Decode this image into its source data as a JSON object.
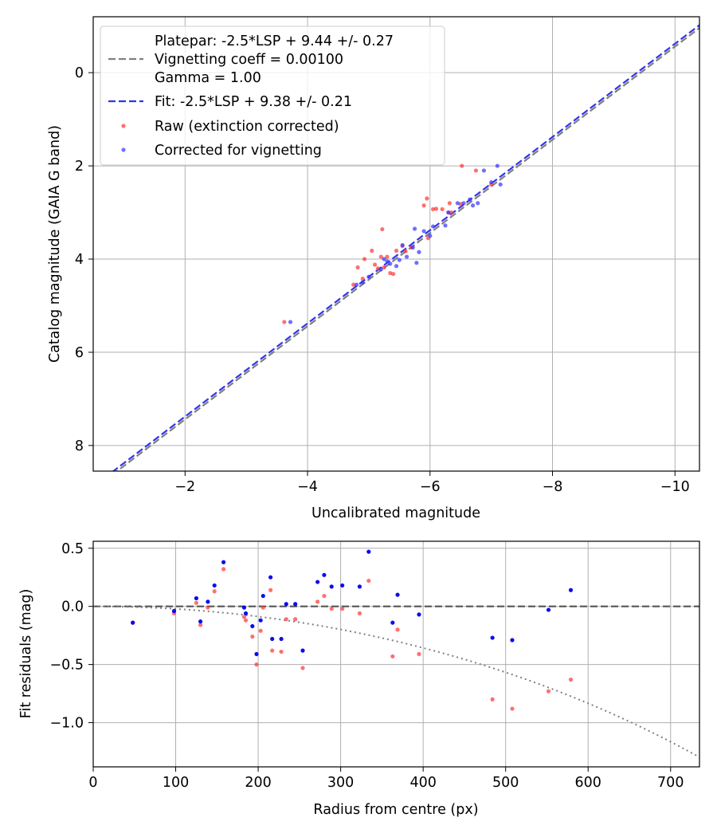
{
  "chart_data": [
    {
      "type": "scatter",
      "xlabel": "Uncalibrated magnitude",
      "ylabel": "Catalog magnitude (GAIA G band)",
      "xlim": [
        -0.5,
        -10.4
      ],
      "ylim": [
        8.55,
        -1.2
      ],
      "x_inverted": true,
      "y_inverted": true,
      "xticks": [
        -2,
        -4,
        -6,
        -8,
        -10
      ],
      "xtick_labels": [
        "−2",
        "−4",
        "−6",
        "−8",
        "−10"
      ],
      "yticks": [
        0,
        2,
        4,
        6,
        8
      ],
      "ytick_labels": [
        "0",
        "2",
        "4",
        "6",
        "8"
      ],
      "grid": true,
      "legend_placement": "top-left",
      "legend": [
        {
          "label": "Platepar: -2.5*LSP + 9.44 +/- 0.27",
          "style": "none"
        },
        {
          "label": "Vignetting coeff = 0.00100",
          "style": "dashed",
          "color": "#7f7f7f"
        },
        {
          "label": "Gamma = 1.00",
          "style": "none"
        },
        {
          "label": "Fit: -2.5*LSP + 9.38 +/- 0.21",
          "style": "dashed",
          "color": "#3333ee"
        },
        {
          "label": "Raw (extinction corrected)",
          "style": "dot",
          "color": "#ff3333"
        },
        {
          "label": "Corrected for vignetting",
          "style": "dot",
          "color": "#3333ff"
        }
      ],
      "lines": [
        {
          "name": "Platepar",
          "slope_per_lsp": -2.5,
          "intercept": 9.44,
          "color": "#7f7f7f",
          "style": "dashed"
        },
        {
          "name": "Fit",
          "slope_per_lsp": -2.5,
          "intercept": 9.38,
          "color": "#3333ee",
          "style": "dashed"
        }
      ],
      "series": [
        {
          "name": "Raw (extinction corrected)",
          "color": "#ff3333",
          "points": [
            [
              -3.62,
              5.35
            ],
            [
              -4.75,
              4.55
            ],
            [
              -4.82,
              4.18
            ],
            [
              -4.9,
              4.42
            ],
            [
              -4.93,
              4.0
            ],
            [
              -5.05,
              3.82
            ],
            [
              -5.1,
              4.12
            ],
            [
              -5.15,
              4.2
            ],
            [
              -5.2,
              3.95
            ],
            [
              -5.22,
              3.36
            ],
            [
              -5.25,
              4.18
            ],
            [
              -5.3,
              3.95
            ],
            [
              -5.35,
              4.3
            ],
            [
              -5.4,
              4.32
            ],
            [
              -5.45,
              3.82
            ],
            [
              -5.55,
              3.72
            ],
            [
              -5.6,
              3.83
            ],
            [
              -5.7,
              3.75
            ],
            [
              -5.9,
              2.85
            ],
            [
              -5.95,
              2.7
            ],
            [
              -5.97,
              3.55
            ],
            [
              -6.05,
              2.93
            ],
            [
              -6.1,
              2.92
            ],
            [
              -6.2,
              2.93
            ],
            [
              -6.3,
              3.0
            ],
            [
              -6.32,
              2.8
            ],
            [
              -6.35,
              3.0
            ],
            [
              -6.5,
              2.82
            ],
            [
              -6.52,
              2.0
            ],
            [
              -6.75,
              2.1
            ],
            [
              -7.0,
              2.4
            ]
          ]
        },
        {
          "name": "Corrected for vignetting",
          "color": "#3333ff",
          "points": [
            [
              -3.72,
              5.35
            ],
            [
              -4.8,
              4.55
            ],
            [
              -4.9,
              4.5
            ],
            [
              -5.0,
              4.38
            ],
            [
              -5.2,
              4.22
            ],
            [
              -5.25,
              4.0
            ],
            [
              -5.3,
              4.05
            ],
            [
              -5.35,
              4.1
            ],
            [
              -5.45,
              4.15
            ],
            [
              -5.5,
              4.02
            ],
            [
              -5.55,
              3.7
            ],
            [
              -5.62,
              3.95
            ],
            [
              -5.72,
              3.75
            ],
            [
              -5.75,
              3.35
            ],
            [
              -5.78,
              4.08
            ],
            [
              -5.82,
              3.85
            ],
            [
              -5.9,
              3.4
            ],
            [
              -6.0,
              3.5
            ],
            [
              -6.05,
              3.3
            ],
            [
              -6.25,
              3.28
            ],
            [
              -6.3,
              3.0
            ],
            [
              -6.45,
              2.8
            ],
            [
              -6.55,
              2.8
            ],
            [
              -6.65,
              2.72
            ],
            [
              -6.7,
              2.85
            ],
            [
              -6.78,
              2.8
            ],
            [
              -6.88,
              2.1
            ],
            [
              -7.0,
              2.35
            ],
            [
              -7.1,
              2.0
            ],
            [
              -7.15,
              2.4
            ]
          ]
        }
      ]
    },
    {
      "type": "scatter",
      "xlabel": "Radius from centre (px)",
      "ylabel": "Fit residuals (mag)",
      "xlim": [
        0,
        735
      ],
      "ylim": [
        -1.38,
        0.56
      ],
      "xticks": [
        0,
        100,
        200,
        300,
        400,
        500,
        600,
        700
      ],
      "xtick_labels": [
        "0",
        "100",
        "200",
        "300",
        "400",
        "500",
        "600",
        "700"
      ],
      "yticks": [
        0.5,
        0.0,
        -0.5,
        -1.0
      ],
      "ytick_labels": [
        "0.5",
        "0.0",
        "−0.5",
        "−1.0"
      ],
      "grid": true,
      "zero_line": {
        "y": 0,
        "style": "dashed",
        "color": "#555555"
      },
      "vignetting_curve": {
        "coeff": 0.001,
        "style": "dotted",
        "color": "#808080"
      },
      "series": [
        {
          "name": "Raw (extinction corrected)",
          "color": "#ff3333",
          "points": [
            [
              48,
              -0.14
            ],
            [
              98,
              -0.06
            ],
            [
              125,
              0.03
            ],
            [
              130,
              -0.16
            ],
            [
              139,
              -0.01
            ],
            [
              147,
              0.13
            ],
            [
              158,
              0.32
            ],
            [
              183,
              -0.09
            ],
            [
              185,
              -0.12
            ],
            [
              193,
              -0.26
            ],
            [
              198,
              -0.5
            ],
            [
              203,
              -0.21
            ],
            [
              206,
              -0.01
            ],
            [
              215,
              0.14
            ],
            [
              217,
              -0.38
            ],
            [
              228,
              -0.39
            ],
            [
              234,
              -0.11
            ],
            [
              245,
              -0.11
            ],
            [
              254,
              -0.53
            ],
            [
              272,
              0.04
            ],
            [
              280,
              0.09
            ],
            [
              289,
              -0.02
            ],
            [
              302,
              -0.02
            ],
            [
              323,
              -0.06
            ],
            [
              334,
              0.22
            ],
            [
              363,
              -0.43
            ],
            [
              369,
              -0.2
            ],
            [
              395,
              -0.41
            ],
            [
              484,
              -0.8
            ],
            [
              508,
              -0.88
            ],
            [
              552,
              -0.73
            ],
            [
              579,
              -0.63
            ]
          ]
        },
        {
          "name": "Corrected for vignetting",
          "color": "#0000ee",
          "points": [
            [
              48,
              -0.14
            ],
            [
              98,
              -0.04
            ],
            [
              125,
              0.07
            ],
            [
              130,
              -0.13
            ],
            [
              139,
              0.04
            ],
            [
              147,
              0.18
            ],
            [
              158,
              0.38
            ],
            [
              183,
              -0.01
            ],
            [
              185,
              -0.06
            ],
            [
              193,
              -0.17
            ],
            [
              198,
              -0.41
            ],
            [
              203,
              -0.12
            ],
            [
              206,
              0.09
            ],
            [
              215,
              0.25
            ],
            [
              217,
              -0.28
            ],
            [
              228,
              -0.28
            ],
            [
              234,
              0.02
            ],
            [
              245,
              0.02
            ],
            [
              254,
              -0.38
            ],
            [
              272,
              0.21
            ],
            [
              280,
              0.27
            ],
            [
              289,
              0.17
            ],
            [
              302,
              0.18
            ],
            [
              323,
              0.17
            ],
            [
              334,
              0.47
            ],
            [
              363,
              -0.14
            ],
            [
              369,
              0.1
            ],
            [
              395,
              -0.07
            ],
            [
              484,
              -0.27
            ],
            [
              508,
              -0.29
            ],
            [
              552,
              -0.03
            ],
            [
              579,
              0.14
            ]
          ]
        }
      ]
    }
  ]
}
